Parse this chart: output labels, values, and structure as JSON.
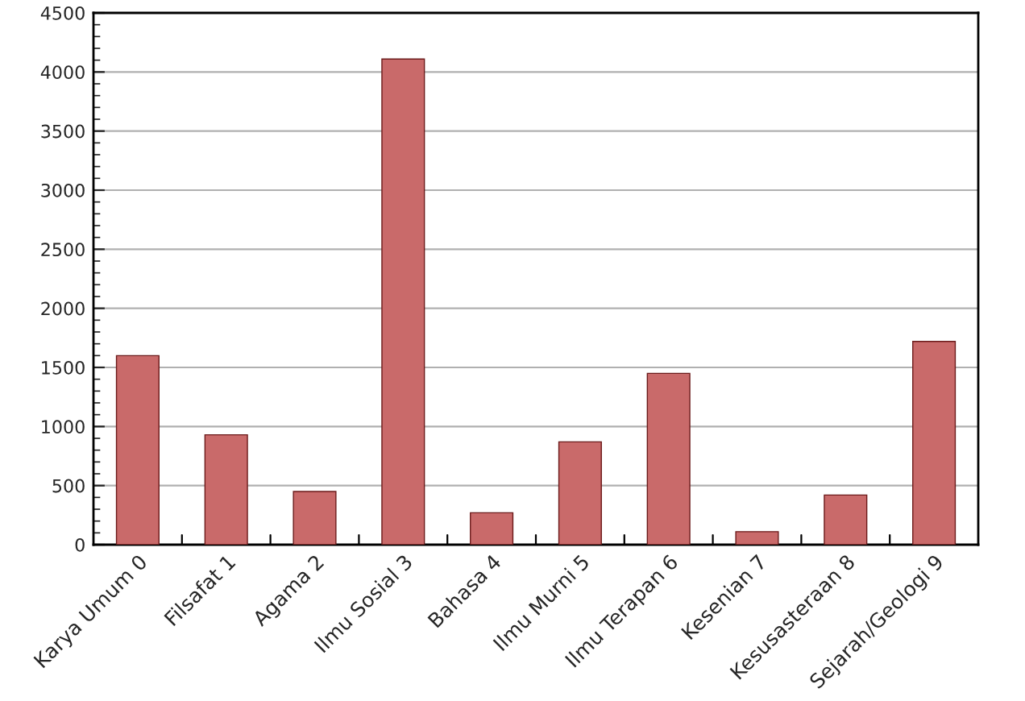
{
  "chart_data": {
    "type": "bar",
    "categories": [
      "Karya Umum 0",
      "Filsafat 1",
      "Agama 2",
      "Ilmu Sosial 3",
      "Bahasa 4",
      "Ilmu Murni 5",
      "Ilmu Terapan 6",
      "Kesenian 7",
      "Kesusasteraan 8",
      "Sejarah/Geologi 9"
    ],
    "values": [
      1600,
      930,
      450,
      4110,
      270,
      870,
      1450,
      110,
      420,
      1720
    ],
    "color": "#c96a6a",
    "ylim": [
      0,
      4500
    ],
    "yticks": [
      0,
      500,
      1000,
      1500,
      2000,
      2500,
      3000,
      3500,
      4000,
      4500
    ],
    "grid": "y"
  }
}
